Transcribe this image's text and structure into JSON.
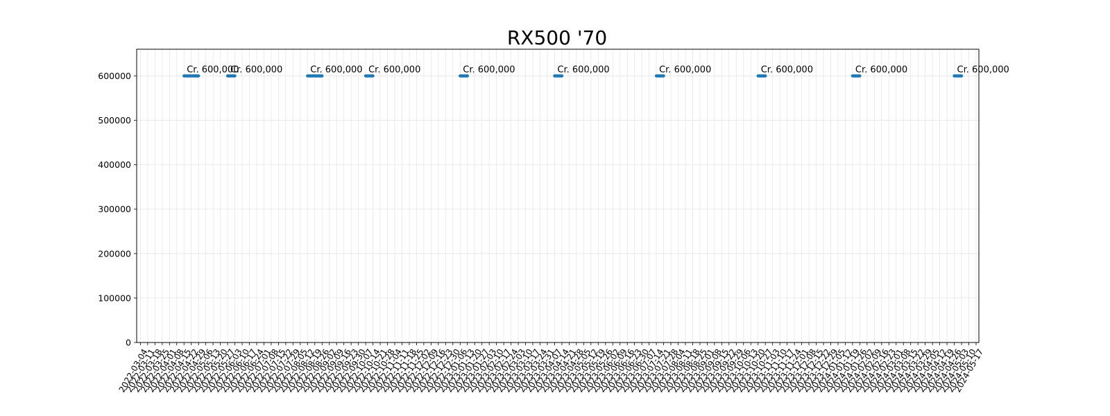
{
  "chart_data": {
    "type": "line",
    "title": "RX500 '70",
    "xlabel": "",
    "ylabel": "",
    "ylim": [
      0,
      660000
    ],
    "yticks": [
      0,
      100000,
      200000,
      300000,
      400000,
      500000,
      600000
    ],
    "grid": true,
    "x_start": "2022-03-04",
    "x_end": "2024-05-17",
    "x_tick_step_days": 7,
    "color": "#1f77b4",
    "series": [
      {
        "values": [
          {
            "x": [
              "2022-04-15",
              "2022-04-29"
            ],
            "y": 600000,
            "label": "Cr. 600,000"
          },
          {
            "x": [
              "2022-05-27",
              "2022-06-03"
            ],
            "y": 600000,
            "label": "Cr. 600,000"
          },
          {
            "x": [
              "2022-08-12",
              "2022-08-26"
            ],
            "y": 600000,
            "label": "Cr. 600,000"
          },
          {
            "x": [
              "2022-10-07",
              "2022-10-14"
            ],
            "y": 600000,
            "label": "Cr. 600,000"
          },
          {
            "x": [
              "2023-01-06",
              "2023-01-13"
            ],
            "y": 600000,
            "label": "Cr. 600,000"
          },
          {
            "x": [
              "2023-04-07",
              "2023-04-14"
            ],
            "y": 600000,
            "label": "Cr. 600,000"
          },
          {
            "x": [
              "2023-07-14",
              "2023-07-21"
            ],
            "y": 600000,
            "label": "Cr. 600,000"
          },
          {
            "x": [
              "2023-10-20",
              "2023-10-27"
            ],
            "y": 600000,
            "label": "Cr. 600,000"
          },
          {
            "x": [
              "2024-01-19",
              "2024-01-26"
            ],
            "y": 600000,
            "label": "Cr. 600,000"
          },
          {
            "x": [
              "2024-04-26",
              "2024-05-03"
            ],
            "y": 600000,
            "label": "Cr. 600,000"
          }
        ]
      }
    ]
  }
}
